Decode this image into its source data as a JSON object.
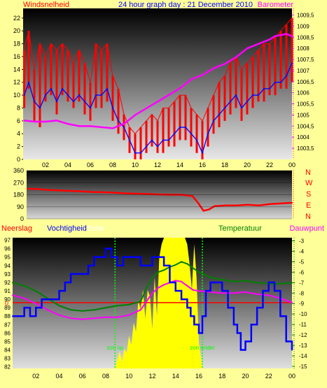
{
  "header": {
    "title": "24 hour graph day : 21 December 2010",
    "left_label": "Windsnelheid",
    "right_label": "Barometer"
  },
  "compass": [
    "N",
    "W",
    "S",
    "E",
    "N"
  ],
  "bottom_labels": {
    "neerslag": "Neerslag",
    "vochtigheid": "Vochtigheid",
    "solar": "Solar",
    "temperatuur": "Temperatuur",
    "dauwpunt": "Dauwpunt",
    "zon_op": "zon op",
    "zon_onder": "zon onder"
  },
  "colors": {
    "wind_gust": "#ff0000",
    "wind_avg": "#0000ff",
    "barometer": "#ff00ff",
    "wind_dir": "#ff0000",
    "humidity": "#0000ff",
    "temperature": "#008000",
    "dewpoint": "#ff00ff",
    "rain": "#ff0000",
    "solar": "#ffff00",
    "sun_markers": "#00ff00"
  },
  "chart_data": [
    {
      "type": "line",
      "panel": "wind-barometer",
      "title": "24 hour graph day : 21 December 2010",
      "x_ticks": [
        "02",
        "04",
        "06",
        "08",
        "10",
        "12",
        "14",
        "16",
        "18",
        "20",
        "22",
        "00"
      ],
      "x_range_hours": [
        0,
        24
      ],
      "y_left_label": "Windsnelheid",
      "y_left_ticks": [
        "0",
        "2",
        "4",
        "6",
        "8",
        "10",
        "12",
        "14",
        "16",
        "18",
        "20",
        "22"
      ],
      "ylim_left": [
        0,
        23.5
      ],
      "y_right_label": "Barometer",
      "y_right_ticks": [
        "1003,5",
        "1004",
        "1004,5",
        "1005",
        "1005,5",
        "1006",
        "1006,5",
        "1007",
        "1007,5",
        "1008",
        "1008,5",
        "1009",
        "1009,5"
      ],
      "ylim_right": [
        1003.0,
        1009.8
      ],
      "series": [
        {
          "name": "Windsnelheid",
          "axis": "left",
          "style": "band",
          "x": [
            0.1,
            0.5,
            1.0,
            1.5,
            2.0,
            2.5,
            3.0,
            3.5,
            4.0,
            4.5,
            5.0,
            5.5,
            6.0,
            6.5,
            7.0,
            7.5,
            8.0,
            8.5,
            9.0,
            9.5,
            10.0,
            10.5,
            11.0,
            11.5,
            12.0,
            12.5,
            13.0,
            13.5,
            14.0,
            14.5,
            15.0,
            15.5,
            16.0,
            16.5,
            17.0,
            17.5,
            18.0,
            18.5,
            19.0,
            19.5,
            20.0,
            20.5,
            21.0,
            21.5,
            22.0,
            22.5,
            23.0,
            23.5,
            24.0
          ],
          "low": [
            8,
            11,
            6,
            5,
            9,
            10,
            7,
            10,
            9,
            8,
            9,
            7,
            6,
            8,
            8,
            9,
            6,
            4,
            3,
            1,
            0,
            0,
            1,
            2,
            1,
            1,
            2,
            2,
            3,
            3,
            2,
            1,
            0,
            2,
            4,
            5,
            6,
            7,
            8,
            6,
            7,
            8,
            9,
            9,
            10,
            10,
            11,
            11,
            12
          ],
          "high": [
            17,
            20,
            14,
            18,
            16,
            18,
            17,
            18,
            17,
            15,
            17,
            15,
            12,
            18,
            17,
            18,
            13,
            11,
            7,
            5,
            4,
            5,
            6,
            7,
            6,
            8,
            8,
            9,
            10,
            10,
            8,
            7,
            6,
            8,
            10,
            12,
            13,
            15,
            16,
            14,
            15,
            16,
            17,
            18,
            18,
            19,
            20,
            21,
            22
          ]
        },
        {
          "name": "",
          "axis": "left",
          "x": [
            0.1,
            0.5,
            1.0,
            1.5,
            2.0,
            2.5,
            3.0,
            3.5,
            4.0,
            4.5,
            5.0,
            5.5,
            6.0,
            6.5,
            7.0,
            7.5,
            8.0,
            8.5,
            9.0,
            9.5,
            10.0,
            10.5,
            11.0,
            11.5,
            12.0,
            12.5,
            13.0,
            13.5,
            14.0,
            14.5,
            15.0,
            15.5,
            16.0,
            16.5,
            17.0,
            17.5,
            18.0,
            18.5,
            19.0,
            19.5,
            20.0,
            20.5,
            21.0,
            21.5,
            22.0,
            22.5,
            23.0,
            23.5,
            24.0
          ],
          "values": [
            10,
            12,
            9,
            8,
            10,
            11,
            9,
            11,
            10,
            9,
            10,
            9,
            8,
            10,
            10,
            11,
            8,
            6,
            5,
            3,
            1,
            1,
            2,
            3,
            2,
            3,
            3,
            4,
            5,
            5,
            4,
            3,
            1,
            4,
            6,
            7,
            8,
            9,
            10,
            8,
            9,
            10,
            10,
            11,
            11,
            12,
            12,
            13,
            15
          ]
        },
        {
          "name": "Barometer",
          "axis": "right",
          "x": [
            0.1,
            1.0,
            2.0,
            3.0,
            4.0,
            5.0,
            6.0,
            7.0,
            8.0,
            9.0,
            10.0,
            11.0,
            12.0,
            13.0,
            14.0,
            15.0,
            16.0,
            17.0,
            18.0,
            19.0,
            20.0,
            21.0,
            22.0,
            22.5,
            23.0,
            23.5,
            24.0
          ],
          "values": [
            1004.75,
            1004.7,
            1004.7,
            1004.75,
            1004.6,
            1004.5,
            1004.5,
            1004.45,
            1004.4,
            1004.6,
            1005.0,
            1005.3,
            1005.6,
            1005.9,
            1006.2,
            1006.6,
            1006.8,
            1007.1,
            1007.3,
            1007.6,
            1008.0,
            1008.2,
            1008.4,
            1008.55,
            1008.6,
            1008.65,
            1008.55
          ]
        }
      ]
    },
    {
      "type": "line",
      "panel": "wind-direction",
      "y_ticks": [
        "0",
        "90",
        "180",
        "270",
        "360"
      ],
      "ylim": [
        0,
        360
      ],
      "series": [
        {
          "name": "",
          "x": [
            0.1,
            1.0,
            2.0,
            3.0,
            4.0,
            5.0,
            6.0,
            7.0,
            8.0,
            9.0,
            10.0,
            11.0,
            12.0,
            13.0,
            14.0,
            15.0,
            15.5,
            16.0,
            16.5,
            17.0,
            18.0,
            19.0,
            20.0,
            21.0,
            22.0,
            23.0,
            24.0
          ],
          "values": [
            225,
            222,
            215,
            212,
            208,
            205,
            200,
            198,
            195,
            190,
            188,
            185,
            182,
            180,
            180,
            170,
            120,
            60,
            70,
            95,
            100,
            100,
            105,
            100,
            110,
            115,
            120
          ]
        }
      ]
    },
    {
      "type": "line",
      "panel": "humidity-temperature",
      "y_left_label": "Vochtigheid",
      "y_left_ticks": [
        "82",
        "83",
        "84",
        "85",
        "86",
        "87",
        "88",
        "89",
        "90",
        "91",
        "92",
        "93",
        "94",
        "95",
        "96",
        "97"
      ],
      "ylim_left": [
        81.8,
        97.3
      ],
      "y_right_label": "Temperatuur",
      "y_right_ticks": [
        "-15",
        "-14",
        "-13",
        "-12",
        "-11",
        "-10",
        "-9",
        "-8",
        "-7",
        "-6",
        "-5",
        "-4",
        "-3"
      ],
      "ylim_right": [
        -15.2,
        -2.7
      ],
      "rain_label": "0",
      "sunrise_hour": 8.8,
      "sunset_hour": 16.3,
      "series": [
        {
          "name": "Vochtigheid",
          "axis": "left",
          "step": true,
          "x": [
            0,
            1.0,
            1.5,
            2.0,
            2.5,
            3.0,
            3.5,
            4.0,
            4.5,
            5.0,
            5.5,
            6.0,
            6.5,
            7.0,
            7.5,
            8.0,
            8.5,
            9.0,
            9.5,
            10.0,
            10.5,
            11.0,
            11.5,
            12.0,
            12.5,
            13.0,
            13.5,
            14.0,
            14.5,
            15.0,
            15.3,
            15.6,
            16.0,
            16.3,
            16.6,
            17.0,
            17.5,
            18.0,
            18.5,
            19.0,
            19.3,
            19.6,
            20.0,
            20.5,
            21.0,
            21.5,
            22.0,
            22.5,
            23.0,
            23.5,
            24.0
          ],
          "values": [
            88,
            89,
            88,
            89,
            90,
            90,
            90,
            91,
            92,
            93,
            93,
            93,
            94,
            95,
            95,
            96,
            95,
            94,
            95,
            95,
            95,
            94,
            94,
            95,
            95,
            94,
            92,
            91,
            90,
            89,
            88,
            87,
            86,
            88,
            91,
            92,
            92,
            91,
            89,
            87,
            86,
            84,
            85,
            87,
            89,
            91,
            92,
            91,
            88,
            85,
            84
          ]
        },
        {
          "name": "Temperatuur",
          "axis": "right",
          "x": [
            0,
            1.0,
            2.0,
            3.0,
            4.0,
            5.0,
            6.0,
            7.0,
            8.0,
            9.0,
            10.0,
            11.0,
            11.5,
            12.0,
            12.5,
            13.0,
            13.5,
            14.0,
            14.5,
            15.0,
            15.5,
            16.0,
            17.0,
            18.0,
            19.0,
            20.0,
            21.0,
            22.0,
            23.0,
            24.0
          ],
          "values": [
            -7.0,
            -7.3,
            -7.8,
            -8.5,
            -9.2,
            -9.6,
            -9.7,
            -9.6,
            -9.4,
            -9.2,
            -9.1,
            -8.8,
            -7.5,
            -6.5,
            -6.0,
            -5.8,
            -5.5,
            -5.3,
            -5.0,
            -5.2,
            -5.6,
            -6.0,
            -6.5,
            -6.7,
            -6.9,
            -6.8,
            -7.0,
            -7.1,
            -7.1,
            -7.0
          ]
        },
        {
          "name": "Dauwpunt",
          "axis": "right",
          "x": [
            0,
            1.0,
            2.0,
            3.0,
            4.0,
            5.0,
            6.0,
            7.0,
            8.0,
            9.0,
            10.0,
            11.0,
            11.5,
            12.0,
            12.5,
            13.0,
            13.5,
            14.0,
            14.5,
            15.0,
            15.5,
            16.0,
            17.0,
            18.0,
            19.0,
            20.0,
            21.0,
            22.0,
            23.0,
            24.0
          ],
          "values": [
            -8.2,
            -8.5,
            -9.0,
            -9.6,
            -10.1,
            -10.4,
            -10.5,
            -10.4,
            -10.3,
            -10.3,
            -10.1,
            -9.6,
            -8.8,
            -8.0,
            -7.5,
            -7.2,
            -7.0,
            -6.8,
            -6.9,
            -7.3,
            -7.7,
            -7.8,
            -7.9,
            -8.0,
            -8.0,
            -7.9,
            -8.1,
            -8.2,
            -8.5,
            -8.9
          ]
        },
        {
          "name": "Neerslag",
          "axis": "rain",
          "x": [
            0,
            24
          ],
          "values": [
            0,
            0
          ]
        },
        {
          "name": "Solar",
          "axis": "solar",
          "x": [
            8.8,
            9.0,
            9.2,
            9.4,
            9.6,
            9.8,
            10.0,
            10.2,
            10.4,
            10.6,
            10.8,
            11.0,
            11.2,
            11.4,
            11.6,
            11.8,
            12.0,
            12.2,
            12.4,
            12.6,
            12.8,
            13.0,
            13.2,
            13.4,
            13.6,
            13.8,
            14.0,
            14.2,
            14.4,
            14.6,
            14.8,
            15.0,
            15.2,
            15.4,
            15.6,
            15.8,
            16.0,
            16.3
          ],
          "values": [
            0,
            0.07,
            0.13,
            0.05,
            0.15,
            0.12,
            0.25,
            0.18,
            0.35,
            0.28,
            0.52,
            0.45,
            0.6,
            0.38,
            0.6,
            0.55,
            0.3,
            0.7,
            0.4,
            0.85,
            0.95,
            1.0,
            1.0,
            1.0,
            1.0,
            1.0,
            1.0,
            1.0,
            1.0,
            1.0,
            1.0,
            0.95,
            0.8,
            0.6,
            0.95,
            0.7,
            0.2,
            0
          ]
        }
      ]
    }
  ]
}
